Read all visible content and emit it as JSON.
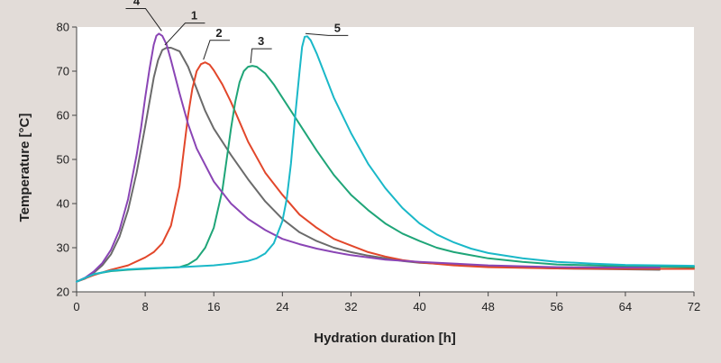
{
  "chart_data": {
    "type": "line",
    "title": "",
    "xlabel": "Hydration duration [h]",
    "ylabel": "Temperature [°C]",
    "xlim": [
      0,
      72
    ],
    "ylim": [
      20,
      80
    ],
    "xticks": [
      0,
      8,
      16,
      24,
      32,
      40,
      48,
      56,
      64,
      72
    ],
    "yticks": [
      20,
      30,
      40,
      50,
      60,
      70,
      80
    ],
    "grid": false,
    "series": [
      {
        "name": "1",
        "color": "#6b6b6b",
        "points": [
          [
            0,
            22.3
          ],
          [
            1,
            23
          ],
          [
            2,
            24.3
          ],
          [
            3,
            26
          ],
          [
            4,
            28.5
          ],
          [
            5,
            32.5
          ],
          [
            6,
            38.5
          ],
          [
            7,
            47
          ],
          [
            8,
            57.5
          ],
          [
            9,
            68.5
          ],
          [
            9.5,
            72.5
          ],
          [
            10,
            74.8
          ],
          [
            10.5,
            75.3
          ],
          [
            11,
            75.3
          ],
          [
            12,
            74.5
          ],
          [
            13,
            71
          ],
          [
            14,
            66
          ],
          [
            15,
            61
          ],
          [
            16,
            57
          ],
          [
            18,
            51
          ],
          [
            20,
            45.5
          ],
          [
            22,
            40.5
          ],
          [
            24,
            36.5
          ],
          [
            26,
            33.5
          ],
          [
            28,
            31.5
          ],
          [
            30,
            30
          ],
          [
            32,
            29
          ],
          [
            34,
            28.2
          ],
          [
            36,
            27.6
          ],
          [
            38,
            27
          ],
          [
            40,
            26.6
          ],
          [
            44,
            26.2
          ],
          [
            48,
            25.8
          ],
          [
            56,
            25.3
          ],
          [
            64,
            25.1
          ],
          [
            68,
            25
          ]
        ],
        "label_at": [
          13.5,
          81.5
        ]
      },
      {
        "name": "2",
        "color": "#e2472b",
        "points": [
          [
            0,
            22.3
          ],
          [
            2,
            23.8
          ],
          [
            4,
            25
          ],
          [
            6,
            26
          ],
          [
            8,
            27.8
          ],
          [
            9,
            29
          ],
          [
            10,
            31
          ],
          [
            11,
            35
          ],
          [
            12,
            44
          ],
          [
            12.5,
            52
          ],
          [
            13,
            60
          ],
          [
            13.5,
            66
          ],
          [
            14,
            70
          ],
          [
            14.5,
            71.6
          ],
          [
            15,
            72
          ],
          [
            15.5,
            71.5
          ],
          [
            16,
            70.2
          ],
          [
            17,
            67
          ],
          [
            18,
            63
          ],
          [
            19,
            58.5
          ],
          [
            20,
            54
          ],
          [
            22,
            47
          ],
          [
            24,
            42
          ],
          [
            26,
            37.5
          ],
          [
            28,
            34.5
          ],
          [
            30,
            32
          ],
          [
            32,
            30.5
          ],
          [
            34,
            29
          ],
          [
            36,
            28
          ],
          [
            38,
            27.2
          ],
          [
            40,
            26.7
          ],
          [
            44,
            26
          ],
          [
            48,
            25.6
          ],
          [
            56,
            25.3
          ],
          [
            64,
            25.2
          ],
          [
            72,
            25.2
          ]
        ],
        "label_at": [
          16.4,
          77.6
        ]
      },
      {
        "name": "3",
        "color": "#1fa578",
        "points": [
          [
            0,
            22.3
          ],
          [
            2,
            24
          ],
          [
            4,
            24.7
          ],
          [
            6,
            25
          ],
          [
            8,
            25.2
          ],
          [
            10,
            25.4
          ],
          [
            12,
            25.6
          ],
          [
            13,
            26.2
          ],
          [
            14,
            27.4
          ],
          [
            15,
            30
          ],
          [
            16,
            34.5
          ],
          [
            17,
            43
          ],
          [
            17.5,
            50
          ],
          [
            18,
            57
          ],
          [
            18.5,
            63
          ],
          [
            19,
            67.5
          ],
          [
            19.5,
            70
          ],
          [
            20,
            71
          ],
          [
            20.5,
            71.2
          ],
          [
            21,
            71
          ],
          [
            22,
            69.5
          ],
          [
            23,
            67
          ],
          [
            24,
            64
          ],
          [
            26,
            58
          ],
          [
            28,
            52
          ],
          [
            30,
            46.5
          ],
          [
            32,
            42
          ],
          [
            34,
            38.5
          ],
          [
            36,
            35.5
          ],
          [
            38,
            33.2
          ],
          [
            40,
            31.5
          ],
          [
            42,
            30
          ],
          [
            44,
            29
          ],
          [
            48,
            27.6
          ],
          [
            52,
            26.8
          ],
          [
            56,
            26.2
          ],
          [
            64,
            25.8
          ],
          [
            72,
            25.6
          ]
        ],
        "label_at": [
          21.3,
          75.7
        ]
      },
      {
        "name": "4",
        "color": "#8a45b5",
        "points": [
          [
            0,
            22.3
          ],
          [
            1,
            23.2
          ],
          [
            2,
            24.6
          ],
          [
            3,
            26.5
          ],
          [
            4,
            29.5
          ],
          [
            5,
            34
          ],
          [
            6,
            41
          ],
          [
            7,
            51
          ],
          [
            7.5,
            57
          ],
          [
            8,
            64
          ],
          [
            8.5,
            70.5
          ],
          [
            9,
            76
          ],
          [
            9.3,
            78
          ],
          [
            9.6,
            78.5
          ],
          [
            10,
            78
          ],
          [
            10.5,
            76
          ],
          [
            11,
            72.5
          ],
          [
            12,
            65
          ],
          [
            13,
            58
          ],
          [
            14,
            52.5
          ],
          [
            16,
            45
          ],
          [
            18,
            40
          ],
          [
            20,
            36.5
          ],
          [
            22,
            34
          ],
          [
            24,
            32
          ],
          [
            26,
            30.8
          ],
          [
            28,
            29.8
          ],
          [
            30,
            29
          ],
          [
            32,
            28.3
          ],
          [
            34,
            27.8
          ],
          [
            36,
            27.3
          ],
          [
            40,
            26.8
          ],
          [
            44,
            26.4
          ],
          [
            48,
            26
          ],
          [
            56,
            25.6
          ],
          [
            64,
            25.5
          ],
          [
            68,
            25.5
          ]
        ],
        "label_at": [
          7.2,
          84.8
        ]
      },
      {
        "name": "5",
        "color": "#1ab8c8",
        "points": [
          [
            0,
            22.3
          ],
          [
            2,
            24
          ],
          [
            4,
            24.8
          ],
          [
            6,
            25.1
          ],
          [
            8,
            25.3
          ],
          [
            12,
            25.6
          ],
          [
            16,
            26
          ],
          [
            18,
            26.4
          ],
          [
            20,
            27
          ],
          [
            21,
            27.6
          ],
          [
            22,
            28.7
          ],
          [
            23,
            31
          ],
          [
            24,
            36
          ],
          [
            24.5,
            41
          ],
          [
            25,
            49
          ],
          [
            25.5,
            60
          ],
          [
            26,
            70
          ],
          [
            26.3,
            75.5
          ],
          [
            26.6,
            77.8
          ],
          [
            26.9,
            77.9
          ],
          [
            27.3,
            77
          ],
          [
            28,
            74
          ],
          [
            29,
            69
          ],
          [
            30,
            64
          ],
          [
            32,
            56
          ],
          [
            34,
            49
          ],
          [
            36,
            43.5
          ],
          [
            38,
            39
          ],
          [
            40,
            35.5
          ],
          [
            42,
            33
          ],
          [
            44,
            31.2
          ],
          [
            46,
            29.8
          ],
          [
            48,
            28.8
          ],
          [
            52,
            27.6
          ],
          [
            56,
            26.8
          ],
          [
            60,
            26.4
          ],
          [
            64,
            26.1
          ],
          [
            72,
            25.9
          ]
        ],
        "label_at": [
          30.2,
          78.7
        ]
      }
    ]
  }
}
